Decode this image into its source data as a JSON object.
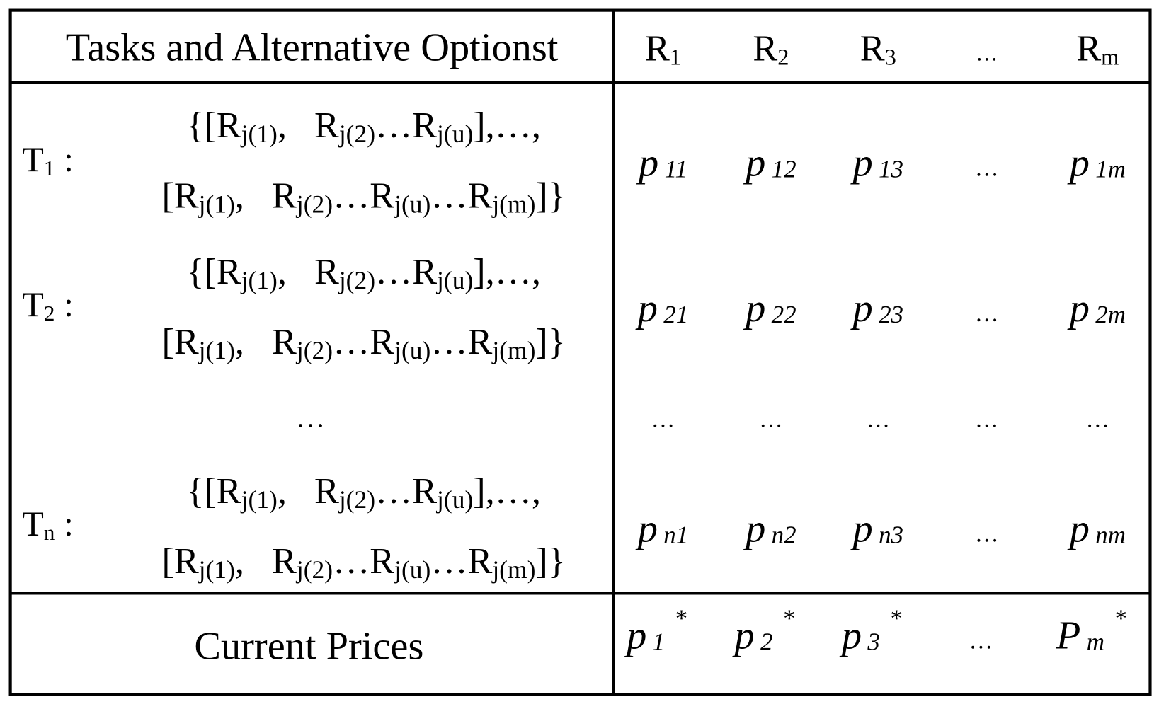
{
  "header": {
    "title": "Tasks and Alternative Optionst",
    "resources": [
      {
        "base": "R",
        "sub": "1"
      },
      {
        "base": "R",
        "sub": "2"
      },
      {
        "base": "R",
        "sub": "3"
      },
      {
        "base": "…"
      },
      {
        "base": "R",
        "sub": "m"
      }
    ]
  },
  "tasks": [
    {
      "label": {
        "base": "T",
        "sub": "1",
        "after": ":"
      },
      "options": [
        [
          "{[R",
          "j(1)",
          ",   R",
          "j(2)",
          "…R",
          "j(u)",
          "],…,"
        ],
        [
          "[R",
          "j(1)",
          ",   R",
          "j(2)",
          "…R",
          "j(u)",
          "…R",
          "j(m)",
          "]}"
        ]
      ],
      "prices": [
        {
          "base": "p",
          "sub": "11"
        },
        {
          "base": "p",
          "sub": "12"
        },
        {
          "base": "p",
          "sub": "13"
        },
        {
          "base": "…"
        },
        {
          "base": "p",
          "sub": "1m"
        }
      ]
    },
    {
      "label": {
        "base": "T",
        "sub": "2",
        "after": ":"
      },
      "options": [
        [
          "{[R",
          "j(1)",
          ",   R",
          "j(2)",
          "…R",
          "j(u)",
          "],…,"
        ],
        [
          "[R",
          "j(1)",
          ",   R",
          "j(2)",
          "…R",
          "j(u)",
          "…R",
          "j(m)",
          "]}"
        ]
      ],
      "prices": [
        {
          "base": "p",
          "sub": "21"
        },
        {
          "base": "p",
          "sub": "22"
        },
        {
          "base": "p",
          "sub": "23"
        },
        {
          "base": "…"
        },
        {
          "base": "p",
          "sub": "2m"
        }
      ]
    },
    {
      "label": {
        "base": "T",
        "sub": "n",
        "after": ":"
      },
      "options": [
        [
          "{[R",
          "j(1)",
          ",   R",
          "j(2)",
          "…R",
          "j(u)",
          "],…,"
        ],
        [
          "[R",
          "j(1)",
          ",   R",
          "j(2)",
          "…R",
          "j(u)",
          "…R",
          "j(m)",
          "]}"
        ]
      ],
      "prices": [
        {
          "base": "p",
          "sub": "n1"
        },
        {
          "base": "p",
          "sub": "n2"
        },
        {
          "base": "p",
          "sub": "n3"
        },
        {
          "base": "…"
        },
        {
          "base": "p",
          "sub": "nm"
        }
      ]
    }
  ],
  "ellipsis_row": {
    "options": "…",
    "prices": [
      "…",
      "…",
      "…",
      "…",
      "…"
    ]
  },
  "footer": {
    "label": "Current Prices",
    "prices": [
      {
        "base": "p",
        "sub": "1",
        "sup": "*"
      },
      {
        "base": "p",
        "sub": "2",
        "sup": "*"
      },
      {
        "base": "p",
        "sub": "3",
        "sup": "*"
      },
      {
        "base": "…"
      },
      {
        "base": "P",
        "sub": "m",
        "sup": "*"
      }
    ]
  }
}
